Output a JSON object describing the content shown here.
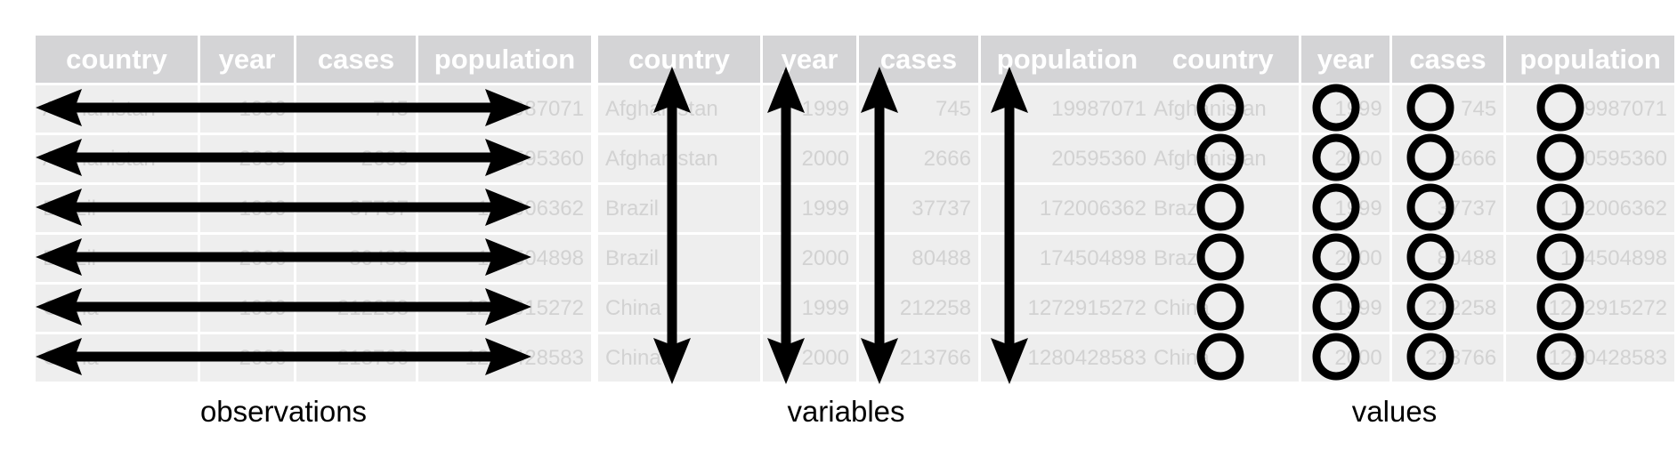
{
  "table": {
    "columns": [
      "country",
      "year",
      "cases",
      "population"
    ],
    "rows": [
      [
        "Afghanistan",
        "1999",
        "745",
        "19987071"
      ],
      [
        "Afghanistan",
        "2000",
        "2666",
        "20595360"
      ],
      [
        "Brazil",
        "1999",
        "37737",
        "172006362"
      ],
      [
        "Brazil",
        "2000",
        "80488",
        "174504898"
      ],
      [
        "China",
        "1999",
        "212258",
        "1272915272"
      ],
      [
        "China",
        "2000",
        "213766",
        "1280428583"
      ]
    ]
  },
  "panels": [
    {
      "id": "observations",
      "caption": "observations",
      "marker": "horizontal-double-arrow"
    },
    {
      "id": "variables",
      "caption": "variables",
      "marker": "vertical-double-arrow"
    },
    {
      "id": "values",
      "caption": "values",
      "marker": "circle"
    }
  ],
  "colors": {
    "header_bg": "#d4d4d6",
    "header_text": "#ffffff",
    "cell_bg": "#eeeeee",
    "cell_text": "#d2d2d2",
    "marker": "#000000"
  }
}
